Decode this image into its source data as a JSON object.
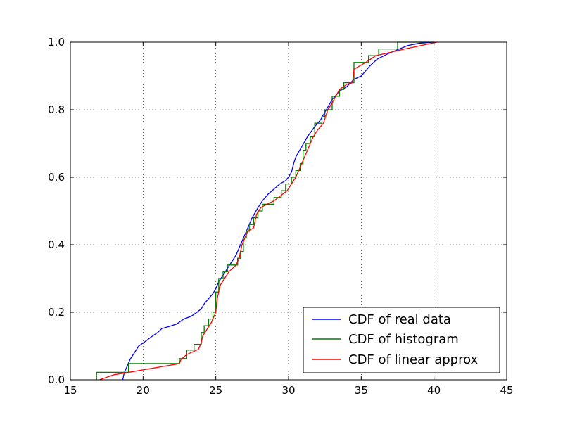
{
  "chart_data": {
    "type": "line",
    "title": "",
    "xlabel": "",
    "ylabel": "",
    "xlim": [
      15,
      45
    ],
    "ylim": [
      0.0,
      1.0
    ],
    "grid": true,
    "legend_position": "lower-right",
    "x_ticks": [
      15,
      20,
      25,
      30,
      35,
      40,
      45
    ],
    "y_ticks": [
      0.0,
      0.2,
      0.4,
      0.6,
      0.8,
      1.0
    ],
    "x_tick_labels": [
      "15",
      "20",
      "25",
      "30",
      "35",
      "40",
      "45"
    ],
    "y_tick_labels": [
      "0.0",
      "0.2",
      "0.4",
      "0.6",
      "0.8",
      "1.0"
    ],
    "series": [
      {
        "name": "CDF of real data",
        "color": "#0000ff",
        "style": "line",
        "points": [
          [
            18.6,
            0.0
          ],
          [
            18.7,
            0.02
          ],
          [
            18.9,
            0.04
          ],
          [
            19.1,
            0.06
          ],
          [
            19.4,
            0.08
          ],
          [
            19.7,
            0.1
          ],
          [
            20.1,
            0.112
          ],
          [
            20.5,
            0.125
          ],
          [
            21.0,
            0.14
          ],
          [
            21.3,
            0.152
          ],
          [
            21.8,
            0.158
          ],
          [
            22.3,
            0.165
          ],
          [
            22.8,
            0.18
          ],
          [
            23.3,
            0.188
          ],
          [
            23.7,
            0.2
          ],
          [
            24.0,
            0.21
          ],
          [
            24.2,
            0.225
          ],
          [
            24.5,
            0.24
          ],
          [
            24.8,
            0.255
          ],
          [
            25.0,
            0.27
          ],
          [
            25.2,
            0.29
          ],
          [
            25.5,
            0.31
          ],
          [
            25.8,
            0.33
          ],
          [
            26.1,
            0.35
          ],
          [
            26.4,
            0.37
          ],
          [
            26.6,
            0.39
          ],
          [
            26.9,
            0.42
          ],
          [
            27.2,
            0.45
          ],
          [
            27.5,
            0.48
          ],
          [
            27.9,
            0.51
          ],
          [
            28.2,
            0.53
          ],
          [
            28.6,
            0.55
          ],
          [
            29.0,
            0.565
          ],
          [
            29.4,
            0.58
          ],
          [
            29.8,
            0.59
          ],
          [
            30.0,
            0.6
          ],
          [
            30.2,
            0.615
          ],
          [
            30.35,
            0.64
          ],
          [
            30.5,
            0.66
          ],
          [
            30.9,
            0.69
          ],
          [
            31.3,
            0.72
          ],
          [
            31.8,
            0.75
          ],
          [
            32.2,
            0.77
          ],
          [
            32.6,
            0.8
          ],
          [
            33.0,
            0.83
          ],
          [
            33.5,
            0.855
          ],
          [
            34.0,
            0.868
          ],
          [
            34.5,
            0.89
          ],
          [
            35.0,
            0.9
          ],
          [
            35.6,
            0.93
          ],
          [
            36.1,
            0.95
          ],
          [
            36.8,
            0.965
          ],
          [
            37.5,
            0.978
          ],
          [
            38.2,
            0.99
          ],
          [
            39.0,
            0.997
          ],
          [
            40.0,
            1.0
          ]
        ]
      },
      {
        "name": "CDF of histogram",
        "color": "#007f00",
        "style": "step",
        "points": [
          [
            16.8,
            0.0
          ],
          [
            16.8,
            0.022
          ],
          [
            19.0,
            0.022
          ],
          [
            19.0,
            0.048
          ],
          [
            22.5,
            0.048
          ],
          [
            22.5,
            0.063
          ],
          [
            23.0,
            0.063
          ],
          [
            23.0,
            0.088
          ],
          [
            23.5,
            0.088
          ],
          [
            23.5,
            0.105
          ],
          [
            24.0,
            0.105
          ],
          [
            24.0,
            0.14
          ],
          [
            24.2,
            0.14
          ],
          [
            24.2,
            0.16
          ],
          [
            24.5,
            0.16
          ],
          [
            24.5,
            0.18
          ],
          [
            24.8,
            0.18
          ],
          [
            24.8,
            0.2
          ],
          [
            25.0,
            0.2
          ],
          [
            25.0,
            0.26
          ],
          [
            25.2,
            0.26
          ],
          [
            25.2,
            0.3
          ],
          [
            25.5,
            0.3
          ],
          [
            25.5,
            0.32
          ],
          [
            25.8,
            0.32
          ],
          [
            25.8,
            0.34
          ],
          [
            26.5,
            0.34
          ],
          [
            26.5,
            0.36
          ],
          [
            26.7,
            0.36
          ],
          [
            26.7,
            0.38
          ],
          [
            26.9,
            0.38
          ],
          [
            26.9,
            0.42
          ],
          [
            27.1,
            0.42
          ],
          [
            27.1,
            0.44
          ],
          [
            27.3,
            0.44
          ],
          [
            27.3,
            0.46
          ],
          [
            27.6,
            0.46
          ],
          [
            27.6,
            0.48
          ],
          [
            27.9,
            0.48
          ],
          [
            27.9,
            0.5
          ],
          [
            28.2,
            0.5
          ],
          [
            28.2,
            0.52
          ],
          [
            29.0,
            0.52
          ],
          [
            29.0,
            0.54
          ],
          [
            29.5,
            0.54
          ],
          [
            29.5,
            0.56
          ],
          [
            29.8,
            0.56
          ],
          [
            29.8,
            0.58
          ],
          [
            30.2,
            0.58
          ],
          [
            30.2,
            0.6
          ],
          [
            30.5,
            0.6
          ],
          [
            30.5,
            0.62
          ],
          [
            30.8,
            0.62
          ],
          [
            30.8,
            0.64
          ],
          [
            31.0,
            0.64
          ],
          [
            31.0,
            0.68
          ],
          [
            31.2,
            0.68
          ],
          [
            31.2,
            0.7
          ],
          [
            31.5,
            0.7
          ],
          [
            31.5,
            0.72
          ],
          [
            31.8,
            0.72
          ],
          [
            31.8,
            0.76
          ],
          [
            32.3,
            0.76
          ],
          [
            32.3,
            0.78
          ],
          [
            32.5,
            0.78
          ],
          [
            32.5,
            0.8
          ],
          [
            33.0,
            0.8
          ],
          [
            33.0,
            0.84
          ],
          [
            33.5,
            0.84
          ],
          [
            33.5,
            0.86
          ],
          [
            33.8,
            0.86
          ],
          [
            33.8,
            0.88
          ],
          [
            34.5,
            0.88
          ],
          [
            34.5,
            0.92
          ],
          [
            34.5,
            0.92
          ],
          [
            34.5,
            0.94
          ],
          [
            35.5,
            0.94
          ],
          [
            35.5,
            0.96
          ],
          [
            36.2,
            0.96
          ],
          [
            36.2,
            0.98
          ],
          [
            37.5,
            0.98
          ],
          [
            37.5,
            1.0
          ],
          [
            40.0,
            1.0
          ]
        ]
      },
      {
        "name": "CDF of linear approx",
        "color": "#ff0000",
        "style": "line",
        "points": [
          [
            17.0,
            0.0
          ],
          [
            18.0,
            0.015
          ],
          [
            19.0,
            0.022
          ],
          [
            22.5,
            0.048
          ],
          [
            22.6,
            0.06
          ],
          [
            23.0,
            0.075
          ],
          [
            23.8,
            0.09
          ],
          [
            24.0,
            0.11
          ],
          [
            24.1,
            0.13
          ],
          [
            24.4,
            0.15
          ],
          [
            24.7,
            0.17
          ],
          [
            24.9,
            0.19
          ],
          [
            25.0,
            0.2
          ],
          [
            25.1,
            0.24
          ],
          [
            25.3,
            0.28
          ],
          [
            25.6,
            0.3
          ],
          [
            25.9,
            0.32
          ],
          [
            26.4,
            0.34
          ],
          [
            26.6,
            0.36
          ],
          [
            26.8,
            0.4
          ],
          [
            27.2,
            0.44
          ],
          [
            27.6,
            0.45
          ],
          [
            27.8,
            0.49
          ],
          [
            28.1,
            0.51
          ],
          [
            28.5,
            0.52
          ],
          [
            29.0,
            0.53
          ],
          [
            29.6,
            0.55
          ],
          [
            29.9,
            0.56
          ],
          [
            30.2,
            0.58
          ],
          [
            30.5,
            0.6
          ],
          [
            30.9,
            0.64
          ],
          [
            31.3,
            0.68
          ],
          [
            31.5,
            0.7
          ],
          [
            31.7,
            0.72
          ],
          [
            32.0,
            0.74
          ],
          [
            32.4,
            0.76
          ],
          [
            32.7,
            0.8
          ],
          [
            33.0,
            0.82
          ],
          [
            33.5,
            0.86
          ],
          [
            34.0,
            0.875
          ],
          [
            34.4,
            0.88
          ],
          [
            34.5,
            0.92
          ],
          [
            35.3,
            0.94
          ],
          [
            36.0,
            0.96
          ],
          [
            38.0,
            0.98
          ],
          [
            40.2,
            1.0
          ]
        ]
      }
    ]
  }
}
